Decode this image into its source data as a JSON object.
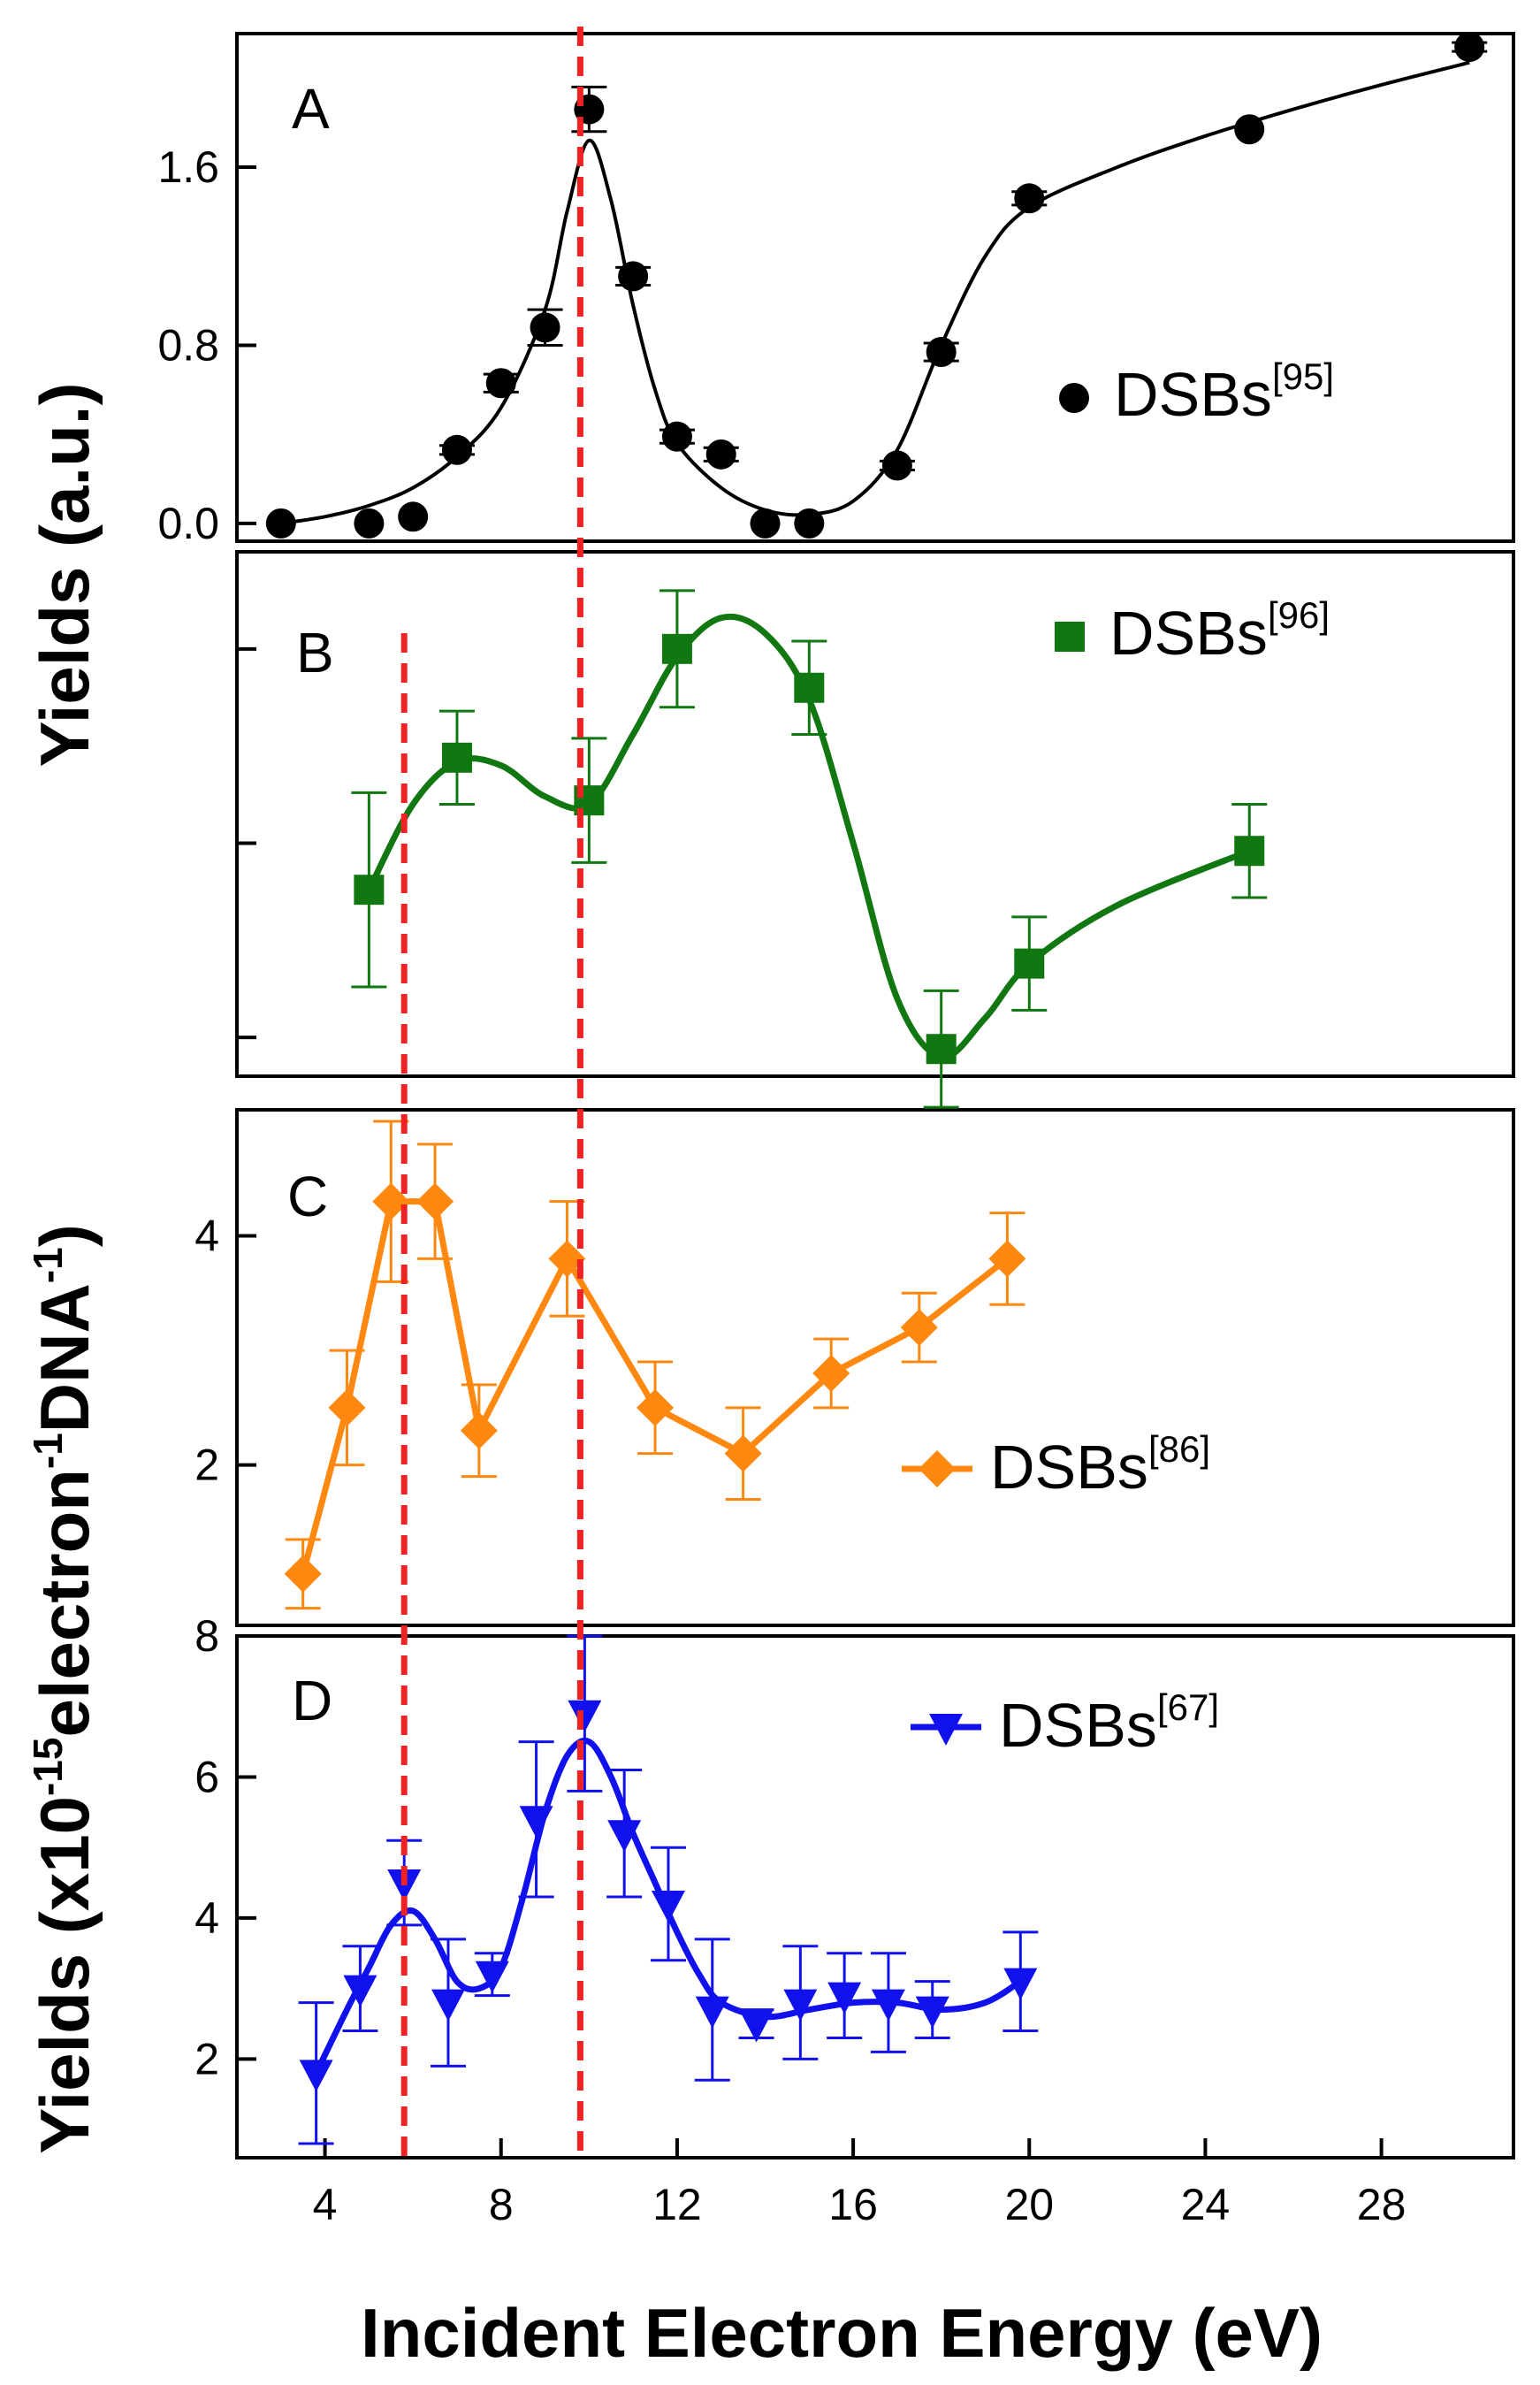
{
  "chart_data": {
    "type": "line",
    "xlabel": "Incident Electron Energy (eV)",
    "xlim": [
      2,
      31
    ],
    "xticks": [
      4,
      8,
      12,
      16,
      20,
      24,
      28
    ],
    "ylabel_top": "Yields (a.u.)",
    "ylabel_bottom_main": "Yields (x10",
    "ylabel_bottom_exp1": "-15",
    "ylabel_bottom_mid": "electron",
    "ylabel_bottom_exp2": "-1",
    "ylabel_bottom_mid2": "DNA",
    "ylabel_bottom_exp3": "-1",
    "ylabel_bottom_end": ")",
    "reference_lines_x": [
      5.8,
      9.8
    ],
    "reference_line_color": "#ee2222",
    "panels": [
      {
        "label": "A",
        "color": "#000000",
        "marker": "circle",
        "legend_name": "DSBs",
        "legend_ref": "[95]",
        "ylim": [
          -0.08,
          2.2
        ],
        "yticks": [
          0.0,
          0.8,
          1.6
        ],
        "ytick_labels": [
          "0.0",
          "0.8",
          "1.6"
        ],
        "points": [
          {
            "x": 3,
            "y": 0.0,
            "err": 0
          },
          {
            "x": 5,
            "y": 0.0,
            "err": 0
          },
          {
            "x": 6,
            "y": 0.03,
            "err": 0
          },
          {
            "x": 7,
            "y": 0.33,
            "err": 0.02
          },
          {
            "x": 8,
            "y": 0.63,
            "err": 0.04
          },
          {
            "x": 9,
            "y": 0.88,
            "err": 0.08
          },
          {
            "x": 10,
            "y": 1.86,
            "err": 0.1
          },
          {
            "x": 11,
            "y": 1.11,
            "err": 0.04
          },
          {
            "x": 12,
            "y": 0.39,
            "err": 0.03
          },
          {
            "x": 13,
            "y": 0.31,
            "err": 0.03
          },
          {
            "x": 14,
            "y": 0.0,
            "err": 0
          },
          {
            "x": 15,
            "y": 0.0,
            "err": 0
          },
          {
            "x": 17,
            "y": 0.26,
            "err": 0.02
          },
          {
            "x": 18,
            "y": 0.77,
            "err": 0.04
          },
          {
            "x": 20,
            "y": 1.46,
            "err": 0.03
          },
          {
            "x": 25,
            "y": 1.77,
            "err": 0
          },
          {
            "x": 30,
            "y": 2.14,
            "err": 0.02
          }
        ],
        "fit_curve": [
          [
            3,
            0.0
          ],
          [
            4,
            0.03
          ],
          [
            5,
            0.08
          ],
          [
            6,
            0.16
          ],
          [
            7,
            0.3
          ],
          [
            8,
            0.52
          ],
          [
            9,
            0.96
          ],
          [
            9.5,
            1.4
          ],
          [
            10,
            1.72
          ],
          [
            10.5,
            1.45
          ],
          [
            11,
            0.98
          ],
          [
            11.5,
            0.6
          ],
          [
            12,
            0.36
          ],
          [
            13,
            0.16
          ],
          [
            14,
            0.06
          ],
          [
            15,
            0.04
          ],
          [
            16,
            0.1
          ],
          [
            17,
            0.33
          ],
          [
            18,
            0.8
          ],
          [
            19,
            1.2
          ],
          [
            20,
            1.42
          ],
          [
            22,
            1.6
          ],
          [
            24,
            1.74
          ],
          [
            26,
            1.86
          ],
          [
            28,
            1.97
          ],
          [
            30,
            2.07
          ]
        ]
      },
      {
        "label": "B",
        "color": "#117711",
        "marker": "square",
        "legend_name": "DSBs",
        "legend_ref": "[96]",
        "ylim": [
          -0.1,
          1.25
        ],
        "yticks": [
          0,
          0.5,
          1.0
        ],
        "ytick_labels": [
          "",
          "",
          ""
        ],
        "points": [
          {
            "x": 5,
            "y": 0.38,
            "err": 0.25
          },
          {
            "x": 7,
            "y": 0.72,
            "err": 0.12
          },
          {
            "x": 10,
            "y": 0.61,
            "err": 0.16
          },
          {
            "x": 12,
            "y": 1.0,
            "err": 0.15
          },
          {
            "x": 15,
            "y": 0.9,
            "err": 0.12
          },
          {
            "x": 18,
            "y": -0.03,
            "err": 0.15
          },
          {
            "x": 20,
            "y": 0.19,
            "err": 0.12
          },
          {
            "x": 25,
            "y": 0.48,
            "err": 0.12
          }
        ],
        "fit_curve": [
          [
            5,
            0.38
          ],
          [
            6,
            0.6
          ],
          [
            7,
            0.71
          ],
          [
            8,
            0.7
          ],
          [
            9,
            0.62
          ],
          [
            10,
            0.6
          ],
          [
            11,
            0.78
          ],
          [
            12,
            0.98
          ],
          [
            13,
            1.08
          ],
          [
            14,
            1.04
          ],
          [
            15,
            0.87
          ],
          [
            16,
            0.5
          ],
          [
            17,
            0.1
          ],
          [
            18,
            -0.05
          ],
          [
            19,
            0.05
          ],
          [
            20,
            0.19
          ],
          [
            22,
            0.34
          ],
          [
            25,
            0.48
          ]
        ]
      },
      {
        "label": "C",
        "color": "#ff8811",
        "marker": "diamond",
        "legend_name": "DSBs",
        "legend_ref": "[86]",
        "ylim": [
          0.6,
          5.1
        ],
        "yticks": [
          2,
          4
        ],
        "ytick_labels": [
          "2",
          "4"
        ],
        "points": [
          {
            "x": 3.5,
            "y": 1.05,
            "err": 0.3
          },
          {
            "x": 4.5,
            "y": 2.5,
            "err": 0.5
          },
          {
            "x": 5.5,
            "y": 4.3,
            "err": 0.7
          },
          {
            "x": 6.5,
            "y": 4.3,
            "err": 0.5
          },
          {
            "x": 7.5,
            "y": 2.3,
            "err": 0.4
          },
          {
            "x": 9.5,
            "y": 3.8,
            "err": 0.5
          },
          {
            "x": 11.5,
            "y": 2.5,
            "err": 0.4
          },
          {
            "x": 13.5,
            "y": 2.1,
            "err": 0.4
          },
          {
            "x": 15.5,
            "y": 2.8,
            "err": 0.3
          },
          {
            "x": 17.5,
            "y": 3.2,
            "err": 0.3
          },
          {
            "x": 19.5,
            "y": 3.8,
            "err": 0.4
          }
        ],
        "fit_curve": []
      },
      {
        "label": "D",
        "color": "#1111ee",
        "marker": "triangle-down",
        "legend_name": "DSBs",
        "legend_ref": "[67]",
        "ylim": [
          0.6,
          8.0
        ],
        "yticks": [
          2,
          4,
          6,
          8
        ],
        "ytick_labels": [
          "2",
          "4",
          "6",
          "8"
        ],
        "points": [
          {
            "x": 3.8,
            "y": 1.8,
            "err": 1.0
          },
          {
            "x": 4.8,
            "y": 3.0,
            "err": 0.6
          },
          {
            "x": 5.8,
            "y": 4.5,
            "err": 0.6
          },
          {
            "x": 6.8,
            "y": 2.8,
            "err": 0.9
          },
          {
            "x": 7.8,
            "y": 3.2,
            "err": 0.3
          },
          {
            "x": 8.8,
            "y": 5.4,
            "err": 1.1
          },
          {
            "x": 9.9,
            "y": 6.9,
            "err": 1.1
          },
          {
            "x": 10.8,
            "y": 5.2,
            "err": 0.9
          },
          {
            "x": 11.8,
            "y": 4.2,
            "err": 0.8
          },
          {
            "x": 12.8,
            "y": 2.7,
            "err": 1.0
          },
          {
            "x": 13.8,
            "y": 2.5,
            "err": 0.2
          },
          {
            "x": 14.8,
            "y": 2.8,
            "err": 0.8
          },
          {
            "x": 15.8,
            "y": 2.9,
            "err": 0.6
          },
          {
            "x": 16.8,
            "y": 2.8,
            "err": 0.7
          },
          {
            "x": 17.8,
            "y": 2.7,
            "err": 0.4
          },
          {
            "x": 19.8,
            "y": 3.1,
            "err": 0.7
          }
        ],
        "fit_curve": [
          [
            3.8,
            1.8
          ],
          [
            4.5,
            2.7
          ],
          [
            5,
            3.3
          ],
          [
            5.5,
            3.9
          ],
          [
            6,
            4.1
          ],
          [
            6.5,
            3.7
          ],
          [
            7,
            3.1
          ],
          [
            7.5,
            3.0
          ],
          [
            8,
            3.3
          ],
          [
            8.5,
            4.3
          ],
          [
            9,
            5.5
          ],
          [
            9.5,
            6.3
          ],
          [
            10,
            6.5
          ],
          [
            10.5,
            6.0
          ],
          [
            11,
            5.2
          ],
          [
            11.5,
            4.5
          ],
          [
            12,
            3.8
          ],
          [
            12.5,
            3.2
          ],
          [
            13,
            2.8
          ],
          [
            14,
            2.6
          ],
          [
            15,
            2.7
          ],
          [
            16,
            2.8
          ],
          [
            17,
            2.8
          ],
          [
            18,
            2.7
          ],
          [
            19,
            2.8
          ],
          [
            19.8,
            3.1
          ]
        ]
      }
    ]
  }
}
